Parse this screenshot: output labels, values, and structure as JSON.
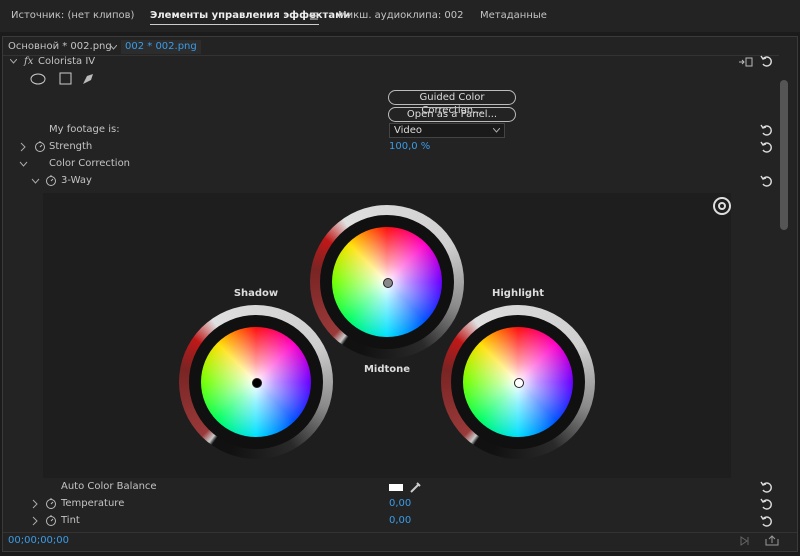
{
  "tabs": [
    "Источник: (нет клипов)",
    "Элементы управления эффектами",
    "Микш. аудиоклипа: 002",
    "Метаданные"
  ],
  "clip_bar": {
    "master": "Основной * 002.png",
    "clip": "002 * 002.png"
  },
  "effect": {
    "fx": "fx",
    "name": "Colorista IV"
  },
  "buttons": [
    "Guided Color Correction...",
    "Open as a Panel..."
  ],
  "footage": {
    "label": "My footage is:",
    "value": "Video"
  },
  "strength": {
    "label": "Strength",
    "value": "100,0 %"
  },
  "color_correction": "Color Correction",
  "three_way": "3-Way",
  "wheels": [
    "Shadow",
    "Midtone",
    "Highlight"
  ],
  "auto_color_balance": "Auto Color Balance",
  "temperature": {
    "label": "Temperature",
    "value": "0,00"
  },
  "tint": {
    "label": "Tint",
    "value": "0,00"
  },
  "timecode": "00;00;00;00"
}
